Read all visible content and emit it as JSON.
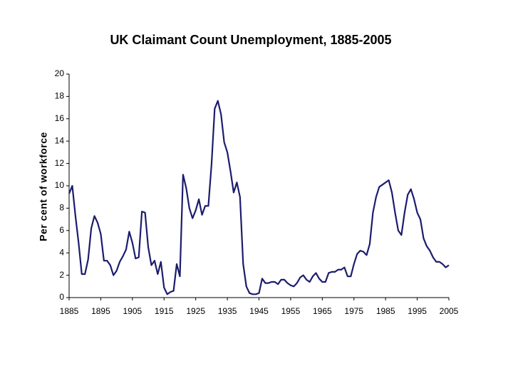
{
  "chart_data": {
    "type": "line",
    "title": "UK Claimant Count Unemployment, 1885-2005",
    "y_label": "Per cent of workforce",
    "x": [
      1885,
      1886,
      1887,
      1888,
      1889,
      1890,
      1891,
      1892,
      1893,
      1894,
      1895,
      1896,
      1897,
      1898,
      1899,
      1900,
      1901,
      1902,
      1903,
      1904,
      1905,
      1906,
      1907,
      1908,
      1909,
      1910,
      1911,
      1912,
      1913,
      1914,
      1915,
      1916,
      1917,
      1918,
      1919,
      1920,
      1921,
      1922,
      1923,
      1924,
      1925,
      1926,
      1927,
      1928,
      1929,
      1930,
      1931,
      1932,
      1933,
      1934,
      1935,
      1936,
      1937,
      1938,
      1939,
      1940,
      1941,
      1942,
      1943,
      1944,
      1945,
      1946,
      1947,
      1948,
      1949,
      1950,
      1951,
      1952,
      1953,
      1954,
      1955,
      1956,
      1957,
      1958,
      1959,
      1960,
      1961,
      1962,
      1963,
      1964,
      1965,
      1966,
      1967,
      1968,
      1969,
      1970,
      1971,
      1972,
      1973,
      1974,
      1975,
      1976,
      1977,
      1978,
      1979,
      1980,
      1981,
      1982,
      1983,
      1984,
      1985,
      1986,
      1987,
      1988,
      1989,
      1990,
      1991,
      1992,
      1993,
      1994,
      1995,
      1996,
      1997,
      1998,
      1999,
      2000,
      2001,
      2002,
      2003,
      2004,
      2005
    ],
    "series": [
      {
        "name": "Unemployment",
        "color": "#1c1c6e",
        "values": [
          9.3,
          10.0,
          7.3,
          4.9,
          2.1,
          2.1,
          3.4,
          6.2,
          7.3,
          6.7,
          5.7,
          3.3,
          3.3,
          2.9,
          2.0,
          2.4,
          3.2,
          3.7,
          4.3,
          5.9,
          4.9,
          3.5,
          3.6,
          7.7,
          7.6,
          4.5,
          2.9,
          3.3,
          2.1,
          3.2,
          0.9,
          0.3,
          0.5,
          0.6,
          3.0,
          1.9,
          11.0,
          9.8,
          8.0,
          7.1,
          7.8,
          8.8,
          7.4,
          8.2,
          8.2,
          11.9,
          16.9,
          17.6,
          16.4,
          13.9,
          13.0,
          11.3,
          9.4,
          10.3,
          9.0,
          3.0,
          1.0,
          0.4,
          0.3,
          0.3,
          0.4,
          1.7,
          1.3,
          1.3,
          1.4,
          1.4,
          1.2,
          1.6,
          1.6,
          1.3,
          1.1,
          1.0,
          1.3,
          1.8,
          2.0,
          1.6,
          1.4,
          1.9,
          2.2,
          1.7,
          1.4,
          1.4,
          2.2,
          2.3,
          2.3,
          2.5,
          2.5,
          2.7,
          1.9,
          1.9,
          3.0,
          3.9,
          4.2,
          4.1,
          3.8,
          4.8,
          7.6,
          9.0,
          9.9,
          10.1,
          10.3,
          10.5,
          9.4,
          7.6,
          6.0,
          5.6,
          7.6,
          9.2,
          9.7,
          8.8,
          7.6,
          7.0,
          5.3,
          4.6,
          4.2,
          3.6,
          3.2,
          3.2,
          3.0,
          2.7,
          2.9
        ]
      }
    ],
    "xlim": [
      1885,
      2005
    ],
    "xticks": [
      1885,
      1895,
      1905,
      1915,
      1925,
      1935,
      1945,
      1955,
      1965,
      1975,
      1985,
      1995,
      2005
    ],
    "ylim": [
      0,
      20
    ],
    "yticks": [
      0,
      2,
      4,
      6,
      8,
      10,
      12,
      14,
      16,
      18,
      20
    ]
  }
}
